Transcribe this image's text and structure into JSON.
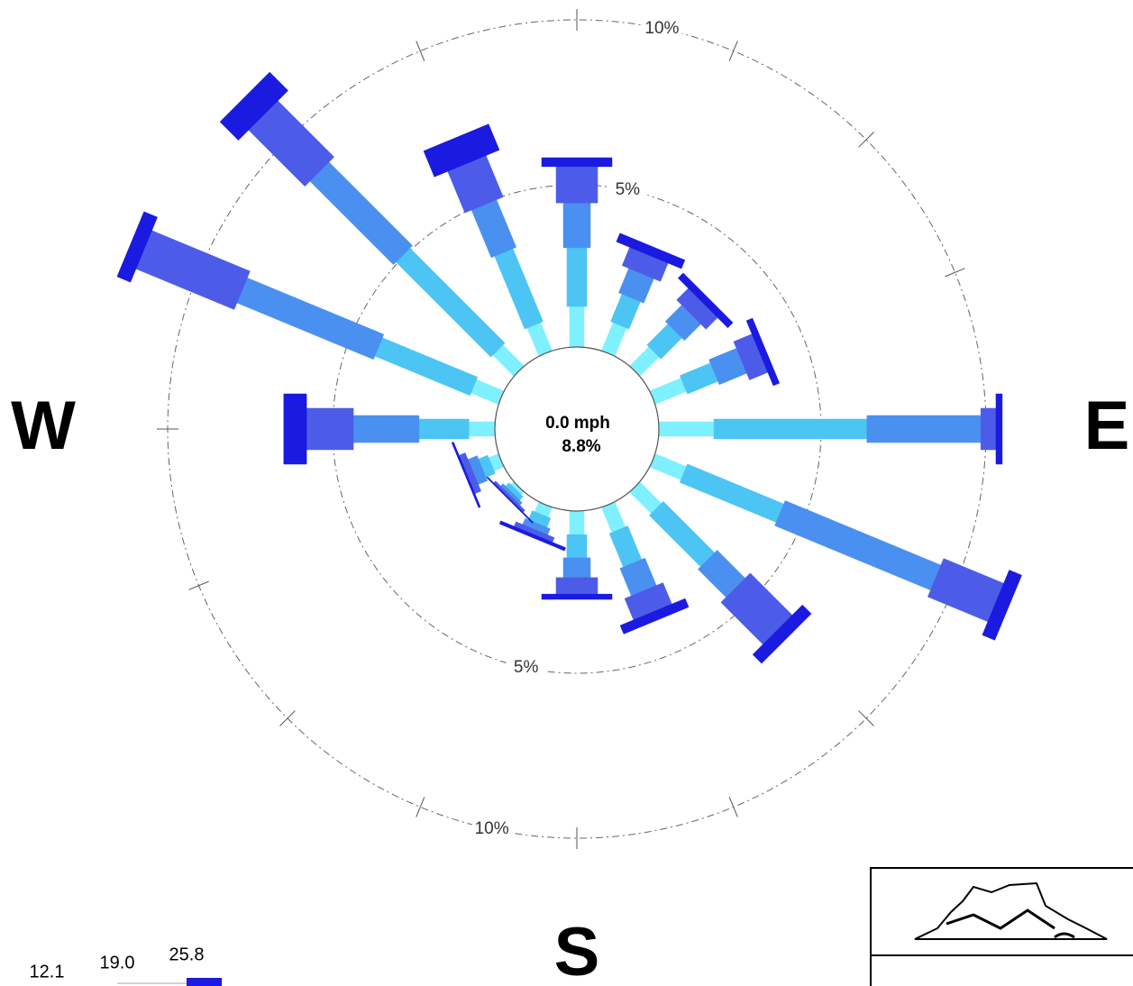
{
  "chart_data": {
    "type": "windrose",
    "calm_label": "0.0 mph",
    "calm_value": 8.8,
    "calm_value_label": "8.8%",
    "compass": [
      "W",
      "E",
      "S"
    ],
    "rings": [
      {
        "value": 5,
        "label": "5%"
      },
      {
        "value": 10,
        "label": "10%"
      }
    ],
    "legend_ticks": [
      {
        "value": 12.1,
        "label": "12.1"
      },
      {
        "value": 19,
        "label": "19.0"
      },
      {
        "value": 25.8,
        "label": "25.8"
      }
    ],
    "series": [
      {
        "color": "#7ff0ff",
        "values": [
          1.31,
          1.0,
          0.9,
          1.1,
          1.75,
          1.1,
          1.0,
          0.9,
          0.8,
          0.4,
          0.2,
          0.4,
          0.87,
          0.98,
          0.98,
          1.0
        ]
      },
      {
        "color": "#4cc4f4",
        "values": [
          1.78,
          0.9,
          0.9,
          1.0,
          4.64,
          3.16,
          2.2,
          1.1,
          0.7,
          0.3,
          0.15,
          0.3,
          1.51,
          3.12,
          4.07,
          2.39
        ]
      },
      {
        "color": "#4a90f0",
        "values": [
          1.36,
          0.8,
          0.7,
          0.9,
          3.45,
          5.11,
          1.2,
          0.9,
          0.6,
          0.2,
          0.1,
          0.3,
          1.99,
          4.48,
          3.58,
          1.56
        ]
      },
      {
        "color": "#4c5ce8",
        "values": [
          1.1,
          0.6,
          0.5,
          0.6,
          0.46,
          1.97,
          1.8,
          0.7,
          0.5,
          0.15,
          0.08,
          0.2,
          1.42,
          3.22,
          2.41,
          1.36
        ]
      },
      {
        "color": "#1a1ae0",
        "values": [
          0.27,
          0.28,
          0.22,
          0.2,
          0.19,
          0.41,
          0.38,
          0.28,
          0.16,
          0.1,
          0.04,
          0.06,
          0.69,
          0.44,
          0.79,
          0.85
        ]
      }
    ]
  }
}
